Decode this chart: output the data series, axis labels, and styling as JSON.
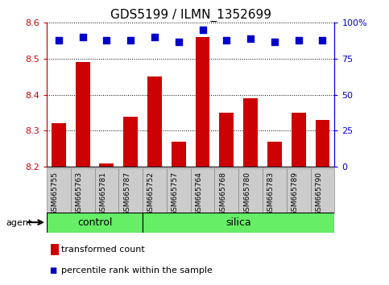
{
  "title": "GDS5199 / ILMN_1352699",
  "samples": [
    "GSM665755",
    "GSM665763",
    "GSM665781",
    "GSM665787",
    "GSM665752",
    "GSM665757",
    "GSM665764",
    "GSM665768",
    "GSM665780",
    "GSM665783",
    "GSM665789",
    "GSM665790"
  ],
  "bar_values": [
    8.32,
    8.49,
    8.21,
    8.34,
    8.45,
    8.27,
    8.56,
    8.35,
    8.39,
    8.27,
    8.35,
    8.33
  ],
  "percentile_values": [
    88,
    90,
    88,
    88,
    90,
    87,
    95,
    88,
    89,
    87,
    88,
    88
  ],
  "bar_bottom": 8.2,
  "ylim_left": [
    8.2,
    8.6
  ],
  "ylim_right": [
    0,
    100
  ],
  "yticks_left": [
    8.2,
    8.3,
    8.4,
    8.5,
    8.6
  ],
  "yticks_right": [
    0,
    25,
    50,
    75,
    100
  ],
  "ytick_labels_right": [
    "0",
    "25",
    "50",
    "75",
    "100%"
  ],
  "bar_color": "#CC0000",
  "dot_color": "#0000CC",
  "grid_color": "#000000",
  "tick_bg_color": "#CCCCCC",
  "control_n": 4,
  "silica_n": 8,
  "control_label": "control",
  "silica_label": "silica",
  "agent_label": "agent",
  "group_bg_color": "#66EE66",
  "legend_bar_label": "transformed count",
  "legend_dot_label": "percentile rank within the sample",
  "bar_width": 0.6,
  "dot_size": 30,
  "title_fontsize": 11,
  "tick_fontsize": 8,
  "label_fontsize": 8,
  "group_fontsize": 9
}
